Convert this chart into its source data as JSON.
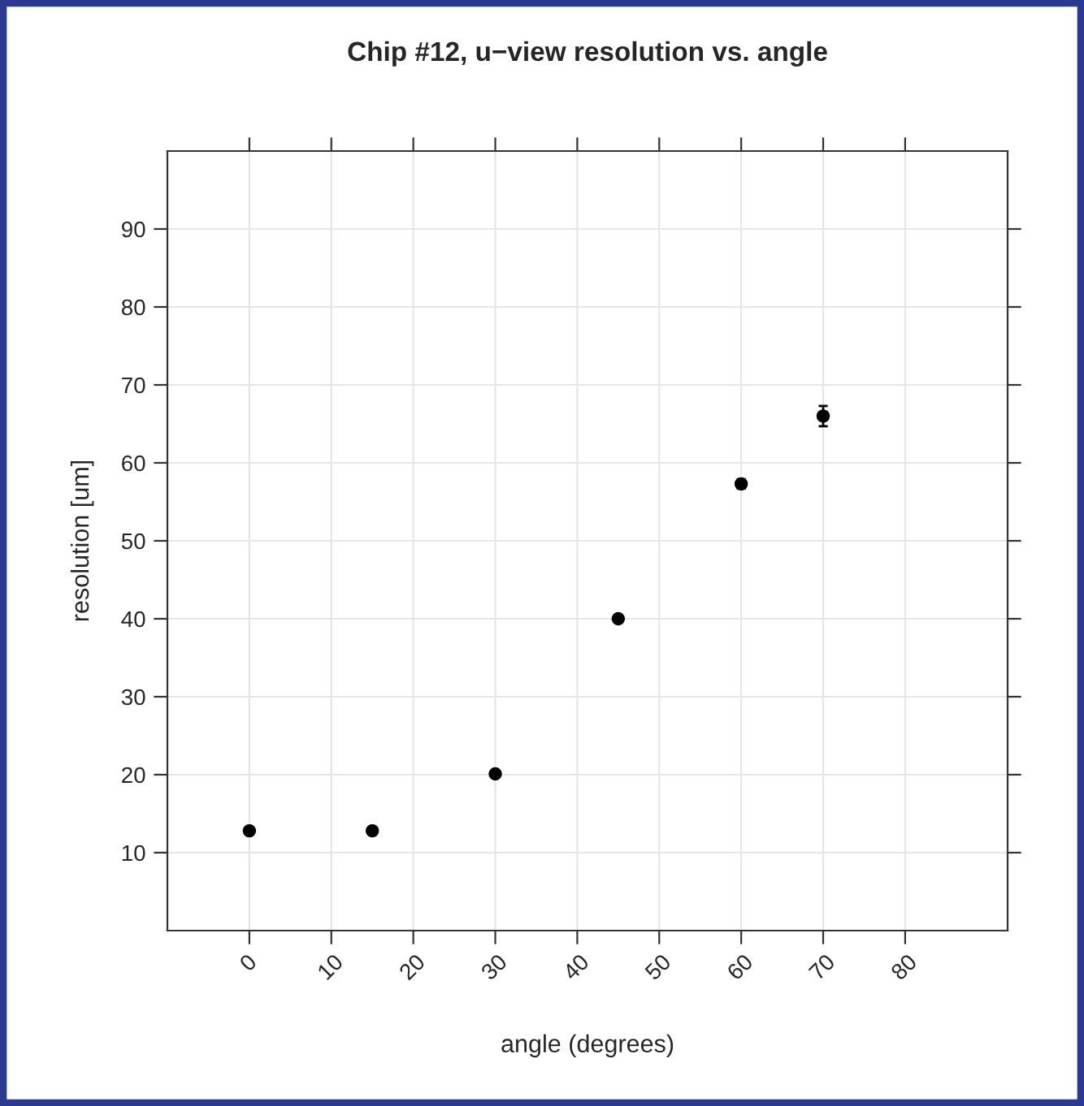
{
  "chart_data": {
    "type": "scatter",
    "title": "Chip #12, u−view resolution vs. angle",
    "xlabel": "angle (degrees)",
    "ylabel": "resolution [um]",
    "x": [
      0,
      15,
      30,
      45,
      60,
      70
    ],
    "series": [
      {
        "color": "#000000",
        "values": [
          12.8,
          12.8,
          20.1,
          40,
          57.3,
          66
        ],
        "errors": [
          null,
          null,
          null,
          null,
          0.6,
          1.3
        ]
      }
    ],
    "xlim": [
      -10,
      92.5
    ],
    "ylim": [
      0,
      100
    ],
    "xticks": [
      0,
      10,
      20,
      30,
      40,
      50,
      60,
      70,
      80
    ],
    "yticks": [
      10,
      20,
      30,
      40,
      50,
      60,
      70,
      80,
      90
    ],
    "grid": true,
    "marker": "circle",
    "legend": false
  }
}
